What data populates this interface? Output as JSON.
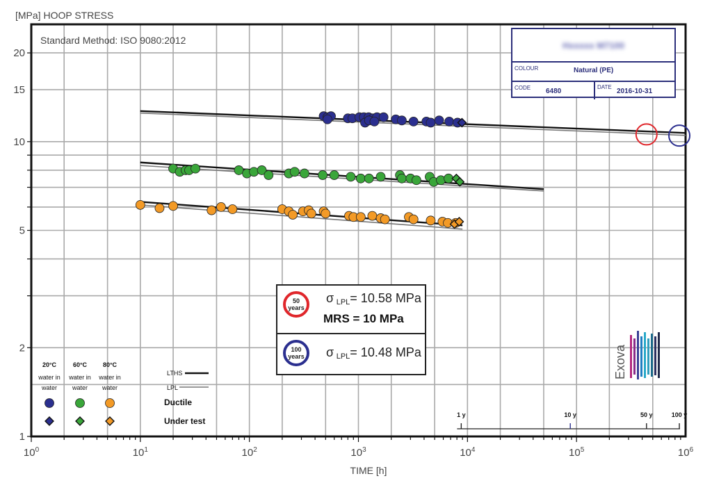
{
  "page": {
    "y_axis_title": "[MPa] HOOP STRESS",
    "x_axis_title": "TIME [h]",
    "method": "Standard Method: ISO 9080:2012"
  },
  "info_table": {
    "material_name": "Hxxxxx M7100",
    "colour_label": "COLOUR",
    "colour_value": "Natural (PE)",
    "code_label": "CODE",
    "code_value": "6480",
    "date_label": "DATE",
    "date_value": "2016-10-31"
  },
  "results": {
    "years50": "50\nyears",
    "years50_a": "50",
    "years50_b": "years",
    "sigma50_symbol": "σ",
    "sigma50_sub": "LPL",
    "sigma50_value": "= 10.58 MPa",
    "mrs": "MRS = 10 MPa",
    "years100_a": "100",
    "years100_b": "years",
    "sigma100_symbol": "σ",
    "sigma100_sub": "LPL",
    "sigma100_value": "= 10.48 MPa"
  },
  "legend": {
    "temps": [
      "20°C",
      "60°C",
      "80°C"
    ],
    "medium_a": [
      "water in",
      "water in",
      "water in"
    ],
    "medium_b": [
      "water",
      "water",
      "water"
    ],
    "ductile": "Ductile",
    "under_test": "Under test",
    "lths": "LTHS",
    "lpl": "LPL"
  },
  "time_markers": {
    "labels": [
      "1 y",
      "10 y",
      "50 y",
      "100 y"
    ],
    "hours": [
      8766,
      87660,
      438300,
      876600
    ]
  },
  "logo": {
    "text": "Exova"
  },
  "colors": {
    "c20": "#2b2f8f",
    "c60": "#3aa63a",
    "c80": "#f39a26",
    "frame": "#111111",
    "grid": "#a9a9a9",
    "red_ring": "#e0262b",
    "blue_ring": "#2b2f8f"
  },
  "chart_data": {
    "type": "scatter",
    "x_scale": "log",
    "y_scale": "log",
    "xlim": [
      1,
      1000000
    ],
    "ylim": [
      1,
      25
    ],
    "x_tick_labels": [
      {
        "base": "10",
        "exp": "0"
      },
      {
        "base": "10",
        "exp": "1"
      },
      {
        "base": "10",
        "exp": "2"
      },
      {
        "base": "10",
        "exp": "3"
      },
      {
        "base": "10",
        "exp": "4"
      },
      {
        "base": "10",
        "exp": "5"
      },
      {
        "base": "10",
        "exp": "6"
      }
    ],
    "y_ticks": [
      1,
      2,
      5,
      10,
      15,
      20
    ],
    "grid": true,
    "series": [
      {
        "name": "20°C water in water",
        "color": "#2b2f8f",
        "ductile": [
          [
            480,
            12.2
          ],
          [
            520,
            12.1
          ],
          [
            560,
            12.2
          ],
          [
            520,
            11.9
          ],
          [
            800,
            12.0
          ],
          [
            880,
            12.0
          ],
          [
            1020,
            12.1
          ],
          [
            1120,
            12.1
          ],
          [
            1240,
            12.1
          ],
          [
            1360,
            12.0
          ],
          [
            1480,
            12.1
          ],
          [
            1150,
            11.6
          ],
          [
            1250,
            11.8
          ],
          [
            1400,
            11.7
          ],
          [
            1700,
            12.1
          ],
          [
            2200,
            11.9
          ],
          [
            2500,
            11.8
          ],
          [
            3200,
            11.7
          ],
          [
            4200,
            11.7
          ],
          [
            4600,
            11.6
          ],
          [
            5500,
            11.8
          ],
          [
            6800,
            11.7
          ],
          [
            8100,
            11.6
          ]
        ],
        "under_test": [
          [
            8900,
            11.6
          ]
        ],
        "lths": [
          [
            10,
            12.7
          ],
          [
            1000000,
            10.7
          ]
        ],
        "lpl": [
          [
            10,
            12.5
          ],
          [
            1000000,
            10.5
          ]
        ]
      },
      {
        "name": "60°C water in water",
        "color": "#3aa63a",
        "ductile": [
          [
            20,
            8.1
          ],
          [
            23,
            7.9
          ],
          [
            26,
            8.0
          ],
          [
            28,
            8.0
          ],
          [
            32,
            8.1
          ],
          [
            80,
            8.0
          ],
          [
            95,
            7.8
          ],
          [
            110,
            7.9
          ],
          [
            130,
            8.0
          ],
          [
            150,
            7.7
          ],
          [
            230,
            7.8
          ],
          [
            260,
            7.9
          ],
          [
            320,
            7.8
          ],
          [
            470,
            7.7
          ],
          [
            600,
            7.7
          ],
          [
            850,
            7.6
          ],
          [
            1050,
            7.5
          ],
          [
            1250,
            7.5
          ],
          [
            1600,
            7.6
          ],
          [
            2400,
            7.7
          ],
          [
            2500,
            7.5
          ],
          [
            3000,
            7.5
          ],
          [
            3400,
            7.4
          ],
          [
            4500,
            7.6
          ],
          [
            4900,
            7.3
          ],
          [
            5700,
            7.4
          ],
          [
            6700,
            7.5
          ]
        ],
        "under_test": [
          [
            7900,
            7.5
          ],
          [
            8500,
            7.3
          ]
        ],
        "lths": [
          [
            10,
            8.5
          ],
          [
            50000,
            6.9
          ]
        ],
        "lpl": [
          [
            10,
            8.3
          ],
          [
            50000,
            6.8
          ]
        ]
      },
      {
        "name": "80°C water in water",
        "color": "#f39a26",
        "ductile": [
          [
            10,
            6.1
          ],
          [
            15,
            5.95
          ],
          [
            20,
            6.05
          ],
          [
            45,
            5.85
          ],
          [
            55,
            6.0
          ],
          [
            70,
            5.9
          ],
          [
            200,
            5.9
          ],
          [
            230,
            5.8
          ],
          [
            250,
            5.65
          ],
          [
            310,
            5.8
          ],
          [
            350,
            5.85
          ],
          [
            370,
            5.7
          ],
          [
            480,
            5.8
          ],
          [
            500,
            5.7
          ],
          [
            820,
            5.6
          ],
          [
            900,
            5.55
          ],
          [
            1050,
            5.55
          ],
          [
            1340,
            5.6
          ],
          [
            1600,
            5.5
          ],
          [
            1750,
            5.45
          ],
          [
            2900,
            5.55
          ],
          [
            3200,
            5.45
          ],
          [
            4600,
            5.4
          ],
          [
            5900,
            5.35
          ],
          [
            6600,
            5.3
          ],
          [
            7800,
            5.3
          ]
        ],
        "under_test": [
          [
            7600,
            5.25
          ],
          [
            8400,
            5.35
          ]
        ],
        "lths": [
          [
            10,
            6.25
          ],
          [
            9000,
            5.2
          ]
        ],
        "lpl": [
          [
            10,
            6.1
          ],
          [
            9000,
            5.05
          ]
        ]
      }
    ],
    "extrapolation_markers": [
      {
        "label": "50 years",
        "x": 438300,
        "y": 10.58,
        "color": "#e0262b"
      },
      {
        "label": "100 years",
        "x": 876600,
        "y": 10.48,
        "color": "#2b2f8f"
      }
    ]
  }
}
